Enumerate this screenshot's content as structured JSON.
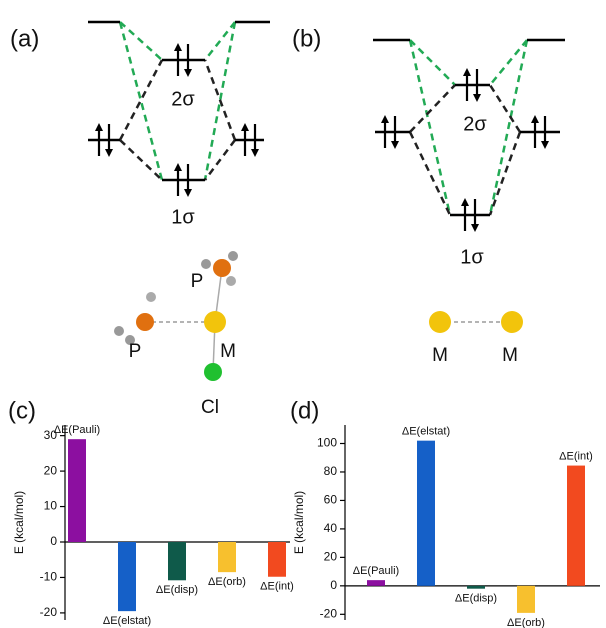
{
  "panels": [
    "(a)",
    "(b)",
    "(c)",
    "(d)"
  ],
  "diagrams": {
    "a": {
      "upper": "2σ",
      "lower": "1σ",
      "atoms": [
        "P",
        "P",
        "M",
        "Cl"
      ]
    },
    "b": {
      "upper": "2σ",
      "lower": "1σ",
      "atoms": [
        "M",
        "M"
      ]
    }
  },
  "chart_data": [
    {
      "type": "bar",
      "y_label": "E (kcal/mol)",
      "categories": [
        "ΔE(Pauli)",
        "ΔE(elstat)",
        "ΔE(disp)",
        "ΔE(orb)",
        "ΔE(int)"
      ],
      "values": [
        29,
        -19.5,
        -10.8,
        -8.5,
        -9.8
      ],
      "colors": [
        "#8c0fa0",
        "#1560c8",
        "#0f5a4a",
        "#f7c02e",
        "#f24a1f"
      ],
      "ylim": [
        -22,
        33
      ],
      "yticks": [
        -20,
        -10,
        0,
        10,
        20,
        30
      ]
    },
    {
      "type": "bar",
      "y_label": "E (kcal/mol)",
      "categories": [
        "ΔE(Pauli)",
        "ΔE(elstat)",
        "ΔE(disp)",
        "ΔE(orb)",
        "ΔE(int)"
      ],
      "values": [
        4,
        102,
        -2,
        -19,
        84.5
      ],
      "colors": [
        "#8c0fa0",
        "#1560c8",
        "#0f5a4a",
        "#f7c02e",
        "#f24a1f"
      ],
      "ylim": [
        -24,
        113
      ],
      "yticks": [
        -20,
        0,
        20,
        40,
        60,
        80,
        100
      ]
    }
  ]
}
